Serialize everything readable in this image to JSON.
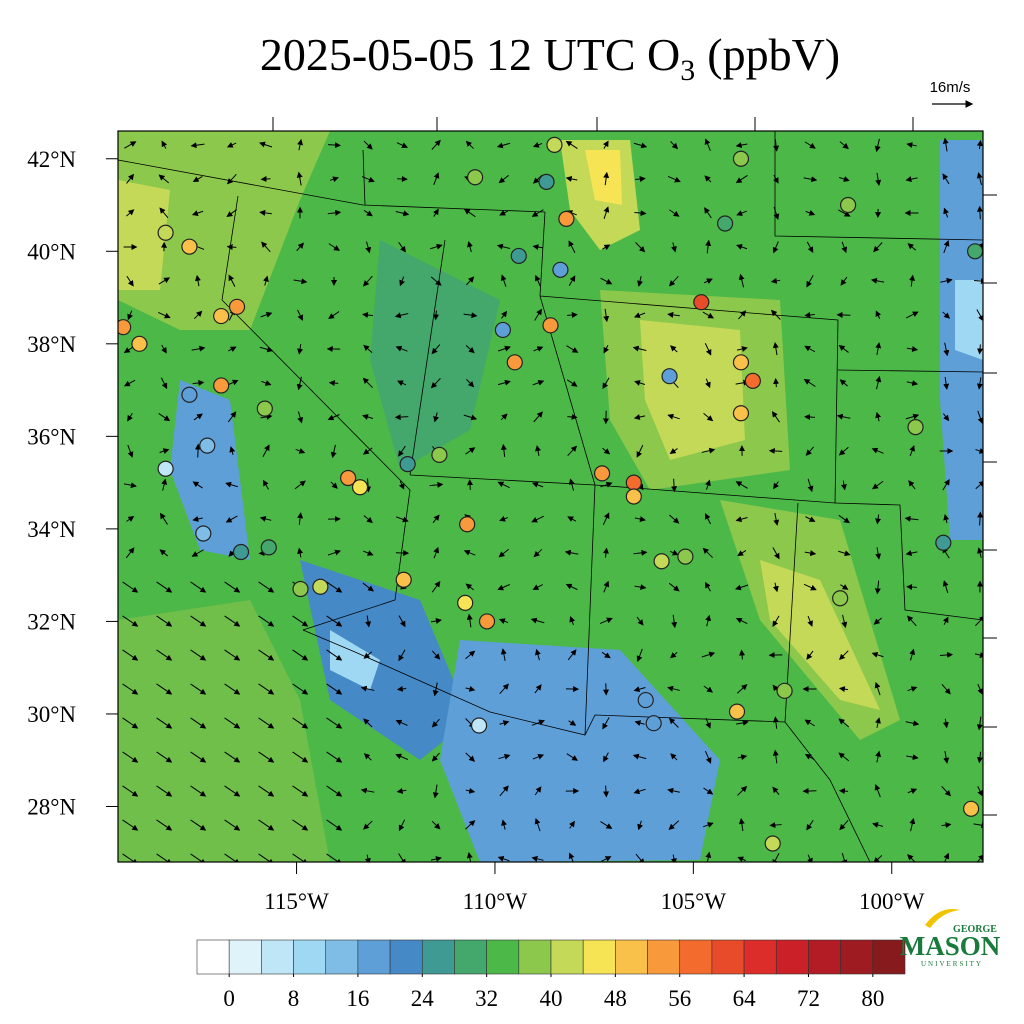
{
  "chart_data": {
    "type": "map",
    "title": "2025-05-05 12 UTC O",
    "title_subscript": "3",
    "title_suffix": "(ppbV)",
    "wind_reference": "16m/s",
    "xlim": [
      -119.5,
      -97.7
    ],
    "ylim": [
      26.8,
      42.6
    ],
    "xticks": [
      {
        "value": -115,
        "label": "115°W"
      },
      {
        "value": -110,
        "label": "110°W"
      },
      {
        "value": -105,
        "label": "105°W"
      },
      {
        "value": -100,
        "label": "100°W"
      }
    ],
    "yticks": [
      {
        "value": 28,
        "label": "28°N"
      },
      {
        "value": 30,
        "label": "30°N"
      },
      {
        "value": 32,
        "label": "32°N"
      },
      {
        "value": 34,
        "label": "34°N"
      },
      {
        "value": 36,
        "label": "36°N"
      },
      {
        "value": 38,
        "label": "38°N"
      },
      {
        "value": 40,
        "label": "40°N"
      },
      {
        "value": 42,
        "label": "42°N"
      }
    ],
    "colorbar": {
      "lim": [
        -4,
        84
      ],
      "ticks": [
        0,
        8,
        16,
        24,
        32,
        40,
        48,
        56,
        64,
        72,
        80
      ],
      "colors": [
        "#ffffff",
        "#dff3fb",
        "#bfe6f7",
        "#9fd8f3",
        "#80bde6",
        "#5e9fd8",
        "#4589c6",
        "#3f9a94",
        "#44a86c",
        "#4cb848",
        "#8cc84c",
        "#c4d957",
        "#f7e455",
        "#f9c04a",
        "#f89a3c",
        "#f36c2d",
        "#e74b2a",
        "#dc2d2a",
        "#cc2029",
        "#b31c24",
        "#9e1b21",
        "#861a1d"
      ]
    },
    "stations": [
      {
        "lon": -119.37,
        "lat": 38.36,
        "value": 54
      },
      {
        "lon": -118.96,
        "lat": 38.0,
        "value": 48
      },
      {
        "lon": -117.7,
        "lat": 40.1,
        "value": 49
      },
      {
        "lon": -118.3,
        "lat": 40.4,
        "value": 43
      },
      {
        "lon": -116.9,
        "lat": 38.6,
        "value": 50
      },
      {
        "lon": -116.5,
        "lat": 38.8,
        "value": 52
      },
      {
        "lon": -116.9,
        "lat": 37.1,
        "value": 53
      },
      {
        "lon": -117.7,
        "lat": 36.9,
        "value": 16
      },
      {
        "lon": -117.25,
        "lat": 35.8,
        "value": 14
      },
      {
        "lon": -118.3,
        "lat": 35.3,
        "value": 4
      },
      {
        "lon": -117.35,
        "lat": 33.9,
        "value": 12
      },
      {
        "lon": -116.4,
        "lat": 33.5,
        "value": 24
      },
      {
        "lon": -115.7,
        "lat": 33.6,
        "value": 30
      },
      {
        "lon": -114.9,
        "lat": 32.7,
        "value": 36
      },
      {
        "lon": -114.4,
        "lat": 32.75,
        "value": 42
      },
      {
        "lon": -115.8,
        "lat": 36.6,
        "value": 36
      },
      {
        "lon": -113.7,
        "lat": 35.1,
        "value": 55
      },
      {
        "lon": -113.4,
        "lat": 34.9,
        "value": 44
      },
      {
        "lon": -112.2,
        "lat": 35.4,
        "value": 24
      },
      {
        "lon": -111.4,
        "lat": 35.6,
        "value": 36
      },
      {
        "lon": -112.3,
        "lat": 32.9,
        "value": 48
      },
      {
        "lon": -110.7,
        "lat": 34.1,
        "value": 55
      },
      {
        "lon": -110.75,
        "lat": 32.4,
        "value": 47
      },
      {
        "lon": -110.2,
        "lat": 32.0,
        "value": 54
      },
      {
        "lon": -110.4,
        "lat": 29.75,
        "value": 6
      },
      {
        "lon": -109.4,
        "lat": 39.9,
        "value": 26
      },
      {
        "lon": -109.8,
        "lat": 38.3,
        "value": 16
      },
      {
        "lon": -110.5,
        "lat": 41.6,
        "value": 36
      },
      {
        "lon": -108.5,
        "lat": 42.3,
        "value": 41
      },
      {
        "lon": -108.7,
        "lat": 41.5,
        "value": 26
      },
      {
        "lon": -108.2,
        "lat": 40.7,
        "value": 53
      },
      {
        "lon": -108.35,
        "lat": 39.6,
        "value": 18
      },
      {
        "lon": -108.6,
        "lat": 38.4,
        "value": 53
      },
      {
        "lon": -109.5,
        "lat": 37.6,
        "value": 54
      },
      {
        "lon": -105.6,
        "lat": 37.3,
        "value": 18
      },
      {
        "lon": -104.8,
        "lat": 38.9,
        "value": 62
      },
      {
        "lon": -103.8,
        "lat": 37.6,
        "value": 49
      },
      {
        "lon": -103.5,
        "lat": 37.2,
        "value": 56
      },
      {
        "lon": -103.8,
        "lat": 36.5,
        "value": 48
      },
      {
        "lon": -106.5,
        "lat": 35.0,
        "value": 56
      },
      {
        "lon": -107.3,
        "lat": 35.2,
        "value": 54
      },
      {
        "lon": -106.5,
        "lat": 34.7,
        "value": 50
      },
      {
        "lon": -105.8,
        "lat": 33.3,
        "value": 40
      },
      {
        "lon": -105.2,
        "lat": 33.4,
        "value": 37
      },
      {
        "lon": -106.0,
        "lat": 29.8,
        "value": 18
      },
      {
        "lon": -106.2,
        "lat": 30.3,
        "value": 16
      },
      {
        "lon": -103.9,
        "lat": 30.05,
        "value": 48
      },
      {
        "lon": -102.7,
        "lat": 30.5,
        "value": 38
      },
      {
        "lon": -99.4,
        "lat": 36.2,
        "value": 38
      },
      {
        "lon": -98.7,
        "lat": 33.7,
        "value": 24
      },
      {
        "lon": -101.3,
        "lat": 32.5,
        "value": 36
      },
      {
        "lon": -97.9,
        "lat": 40.0,
        "value": 30
      },
      {
        "lon": -101.1,
        "lat": 41.0,
        "value": 38
      },
      {
        "lon": -103.8,
        "lat": 42.0,
        "value": 36
      },
      {
        "lon": -104.2,
        "lat": 40.6,
        "value": 30
      },
      {
        "lon": -103.0,
        "lat": 27.2,
        "value": 42
      },
      {
        "lon": -98.0,
        "lat": 27.95,
        "value": 48
      }
    ],
    "logo": {
      "top": "GEORGE",
      "main": "MASON",
      "bottom": "UNIVERSITY"
    }
  }
}
